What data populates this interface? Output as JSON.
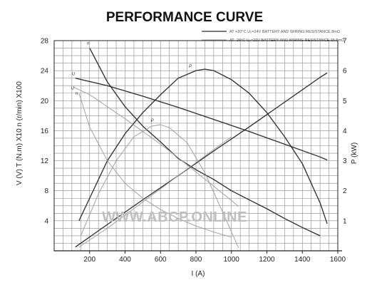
{
  "chart_data": {
    "type": "line",
    "title": "PERFORMANCE CURVE",
    "xlabel": "I (A)",
    "ylabel_left": "V  (V)   T (N.m) X10   n (r/min) X100",
    "ylabel_right": "P (kW)",
    "xlim": [
      0,
      1600
    ],
    "ylim_left": [
      0,
      28
    ],
    "ylim_right": [
      0,
      7
    ],
    "x_ticks": [
      "200",
      "400",
      "600",
      "800",
      "1000",
      "1200",
      "1400",
      "1600"
    ],
    "y_ticks_left": [
      "4",
      "8",
      "12",
      "16",
      "20",
      "24",
      "28"
    ],
    "y_ticks_right": [
      "1",
      "2",
      "3",
      "4",
      "5",
      "6",
      "7"
    ],
    "grid": true,
    "legend_position": "top-right",
    "legend": [
      {
        "text": "AT +20°C  U₀=24V  BATTERY AND WIRING RESISTANCE 8mΩ",
        "style": "dark"
      },
      {
        "text": "AT -29°C  U₀=22V  BATTERY AND WIRING RESISTANCE 15.8mΩ",
        "style": "light"
      }
    ],
    "series": [
      {
        "name": "n",
        "style": "dark",
        "axis": "left",
        "label_at": [
          185,
          27.5
        ],
        "x": [
          200,
          300,
          400,
          500,
          600,
          700,
          800,
          900,
          1000,
          1100,
          1200,
          1300,
          1400,
          1500
        ],
        "y": [
          27.0,
          22.5,
          19.2,
          16.6,
          14.5,
          12.3,
          10.8,
          9.5,
          8.0,
          6.8,
          5.6,
          4.3,
          3.1,
          2.0
        ]
      },
      {
        "name": "U",
        "style": "dark",
        "axis": "left",
        "label_at": [
          100,
          23.4
        ],
        "x": [
          120,
          300,
          500,
          700,
          900,
          1100,
          1300,
          1500,
          1540
        ],
        "y": [
          23.0,
          22.0,
          20.6,
          19.1,
          17.5,
          15.9,
          14.2,
          12.5,
          12.1
        ]
      },
      {
        "name": "T",
        "style": "dark",
        "axis": "left",
        "label_at": null,
        "x": [
          120,
          300,
          500,
          700,
          900,
          1100,
          1300,
          1500,
          1540
        ],
        "y": [
          0.5,
          3.5,
          6.8,
          10.0,
          13.3,
          16.5,
          19.8,
          23.1,
          23.7
        ]
      },
      {
        "name": "P",
        "style": "dark",
        "axis": "right",
        "label_at": [
          760,
          6.1
        ],
        "x": [
          140,
          300,
          400,
          500,
          600,
          700,
          800,
          850,
          900,
          1000,
          1100,
          1200,
          1300,
          1400,
          1500,
          1540
        ],
        "y": [
          1.0,
          3.0,
          3.9,
          4.6,
          5.2,
          5.75,
          6.0,
          6.05,
          6.0,
          5.7,
          5.25,
          4.6,
          3.8,
          2.9,
          1.6,
          0.9
        ]
      },
      {
        "name": "U",
        "style": "light",
        "axis": "left",
        "label_at": [
          95,
          21.5
        ],
        "x": [
          110,
          200,
          300,
          400,
          500,
          600,
          700,
          800,
          900,
          1000,
          1040
        ],
        "y": [
          21.8,
          20.8,
          19.2,
          17.6,
          15.9,
          14.2,
          12.4,
          10.5,
          8.6,
          6.7,
          5.9
        ]
      },
      {
        "name": "n",
        "style": "light",
        "axis": "left",
        "label_at": [
          120,
          20.8
        ],
        "x": [
          140,
          200,
          300,
          400,
          500,
          600,
          700,
          800,
          900,
          1000
        ],
        "y": [
          21.0,
          16.5,
          12.0,
          9.0,
          7.0,
          5.5,
          4.3,
          3.3,
          2.5,
          1.8
        ]
      },
      {
        "name": "T",
        "style": "light",
        "axis": "left",
        "label_at": null,
        "x": [
          140,
          300,
          500,
          700,
          900,
          1000
        ],
        "y": [
          0.5,
          3.0,
          6.5,
          10.0,
          13.5,
          15.2
        ]
      },
      {
        "name": "P",
        "style": "light",
        "axis": "right",
        "label_at": [
          545,
          4.3
        ],
        "x": [
          150,
          250,
          350,
          450,
          550,
          600,
          650,
          750,
          850,
          950,
          1040
        ],
        "y": [
          0.5,
          1.9,
          3.0,
          3.8,
          4.15,
          4.2,
          4.1,
          3.6,
          2.6,
          1.3,
          0.1
        ]
      }
    ],
    "watermark": "WWW.ABCP.ONLINE"
  },
  "colors": {
    "dark": "#2b2b2b",
    "light": "#9a9a9a",
    "grid": "#8a8a8a",
    "axis": "#222222"
  }
}
